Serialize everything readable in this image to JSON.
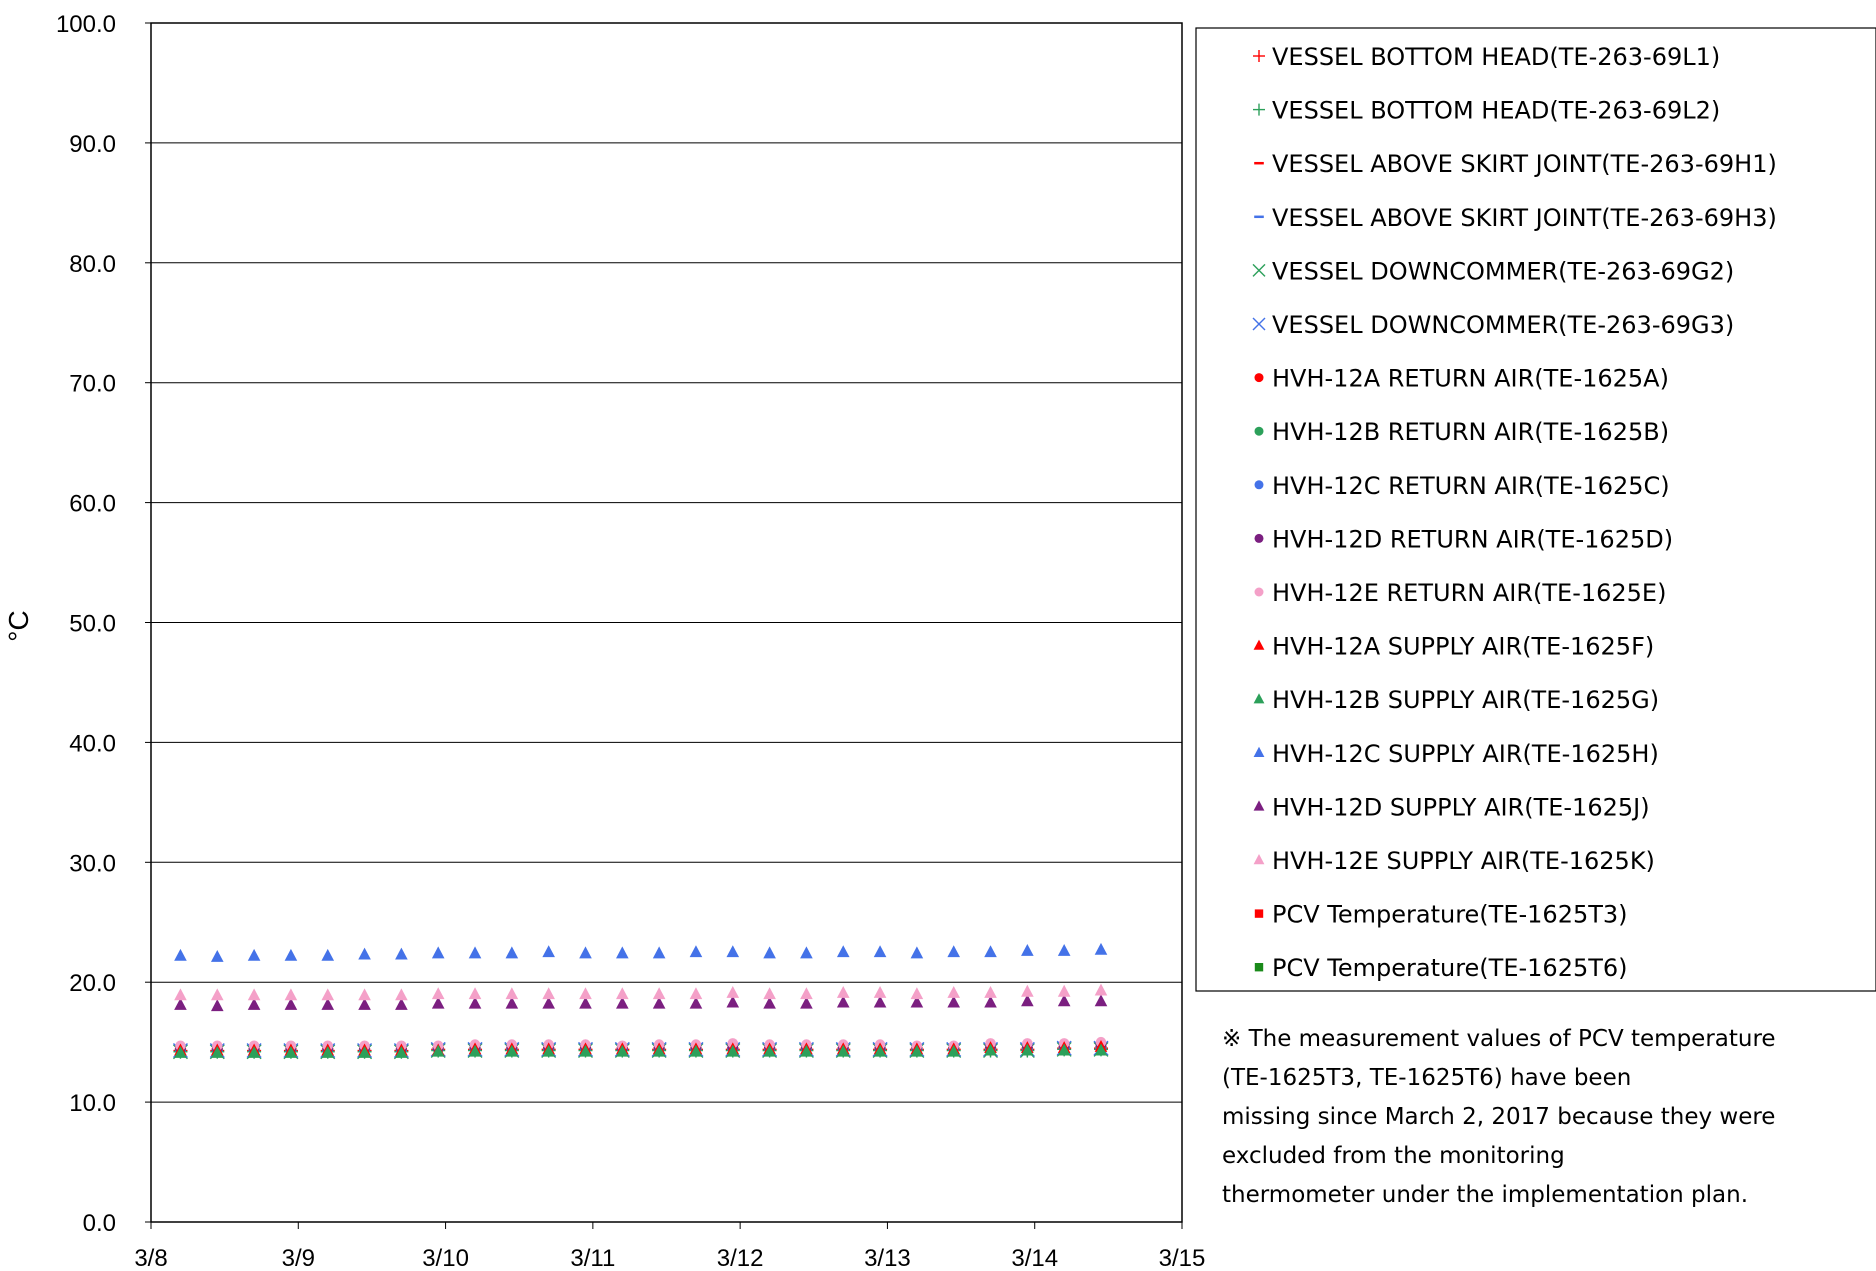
{
  "chart_data": {
    "type": "scatter",
    "title": "",
    "xlabel": "",
    "ylabel": "°C",
    "xlim": [
      0,
      7
    ],
    "xticks": [
      "3/8",
      "3/9",
      "3/10",
      "3/11",
      "3/12",
      "3/13",
      "3/14",
      "3/15"
    ],
    "ylim": [
      0,
      100
    ],
    "yticks": [
      "0.0",
      "10.0",
      "20.0",
      "30.0",
      "40.0",
      "50.0",
      "60.0",
      "70.0",
      "80.0",
      "90.0",
      "100.0"
    ],
    "grid": "horizontal",
    "legend_position": "right",
    "x": [
      0.2,
      0.45,
      0.7,
      0.95,
      1.2,
      1.45,
      1.7,
      1.95,
      2.2,
      2.45,
      2.7,
      2.95,
      3.2,
      3.45,
      3.7,
      3.95,
      4.2,
      4.45,
      4.7,
      4.95,
      5.2,
      5.45,
      5.7,
      5.95,
      6.2,
      6.45
    ],
    "series": [
      {
        "name": "VESSEL BOTTOM HEAD(TE-263-69L1)",
        "color": "#ff0000",
        "marker": "plus",
        "values": [
          14.3,
          14.3,
          14.3,
          14.3,
          14.3,
          14.3,
          14.3,
          14.4,
          14.4,
          14.4,
          14.4,
          14.4,
          14.4,
          14.4,
          14.4,
          14.4,
          14.4,
          14.4,
          14.4,
          14.4,
          14.4,
          14.4,
          14.4,
          14.4,
          14.5,
          14.5
        ]
      },
      {
        "name": "VESSEL BOTTOM HEAD(TE-263-69L2)",
        "color": "#2ca05a",
        "marker": "plus",
        "values": [
          14.2,
          14.2,
          14.2,
          14.2,
          14.2,
          14.2,
          14.2,
          14.3,
          14.3,
          14.3,
          14.3,
          14.3,
          14.3,
          14.3,
          14.3,
          14.3,
          14.3,
          14.3,
          14.3,
          14.3,
          14.3,
          14.3,
          14.3,
          14.3,
          14.4,
          14.4
        ]
      },
      {
        "name": "VESSEL ABOVE SKIRT JOINT(TE-263-69H1)",
        "color": "#ff0000",
        "marker": "dash",
        "values": [
          14.4,
          14.4,
          14.4,
          14.4,
          14.4,
          14.4,
          14.4,
          14.5,
          14.5,
          14.5,
          14.5,
          14.5,
          14.5,
          14.5,
          14.5,
          14.5,
          14.5,
          14.5,
          14.5,
          14.5,
          14.5,
          14.5,
          14.5,
          14.5,
          14.6,
          14.6
        ]
      },
      {
        "name": "VESSEL ABOVE SKIRT JOINT(TE-263-69H3)",
        "color": "#4472e8",
        "marker": "dash",
        "values": [
          14.3,
          14.3,
          14.3,
          14.3,
          14.3,
          14.3,
          14.3,
          14.4,
          14.4,
          14.4,
          14.4,
          14.4,
          14.4,
          14.4,
          14.4,
          14.4,
          14.4,
          14.4,
          14.4,
          14.4,
          14.4,
          14.4,
          14.4,
          14.4,
          14.5,
          14.5
        ]
      },
      {
        "name": "VESSEL DOWNCOMMER(TE-263-69G2)",
        "color": "#2ca05a",
        "marker": "x",
        "values": [
          14.2,
          14.2,
          14.2,
          14.2,
          14.2,
          14.2,
          14.2,
          14.3,
          14.3,
          14.3,
          14.3,
          14.3,
          14.3,
          14.3,
          14.3,
          14.3,
          14.3,
          14.3,
          14.3,
          14.3,
          14.3,
          14.3,
          14.3,
          14.3,
          14.4,
          14.4
        ]
      },
      {
        "name": "VESSEL DOWNCOMMER(TE-263-69G3)",
        "color": "#4472e8",
        "marker": "x",
        "values": [
          14.3,
          14.3,
          14.3,
          14.3,
          14.3,
          14.3,
          14.3,
          14.4,
          14.4,
          14.4,
          14.4,
          14.4,
          14.4,
          14.4,
          14.4,
          14.4,
          14.4,
          14.4,
          14.4,
          14.4,
          14.4,
          14.4,
          14.4,
          14.4,
          14.5,
          14.5
        ]
      },
      {
        "name": "HVH-12A RETURN AIR(TE-1625A)",
        "color": "#ff0000",
        "marker": "circle",
        "values": [
          14.6,
          14.6,
          14.6,
          14.6,
          14.6,
          14.6,
          14.6,
          14.6,
          14.7,
          14.7,
          14.7,
          14.7,
          14.6,
          14.7,
          14.7,
          14.8,
          14.7,
          14.7,
          14.7,
          14.7,
          14.6,
          14.6,
          14.8,
          14.8,
          14.8,
          14.9
        ]
      },
      {
        "name": "HVH-12B RETURN AIR(TE-1625B)",
        "color": "#2ca05a",
        "marker": "circle",
        "values": [
          14.4,
          14.4,
          14.4,
          14.4,
          14.4,
          14.4,
          14.4,
          14.4,
          14.5,
          14.5,
          14.5,
          14.5,
          14.5,
          14.5,
          14.5,
          14.5,
          14.5,
          14.5,
          14.5,
          14.5,
          14.5,
          14.5,
          14.6,
          14.6,
          14.6,
          14.7
        ]
      },
      {
        "name": "HVH-12C RETURN AIR(TE-1625C)",
        "color": "#4472e8",
        "marker": "circle",
        "values": [
          14.5,
          14.5,
          14.5,
          14.5,
          14.5,
          14.5,
          14.5,
          14.5,
          14.6,
          14.6,
          14.6,
          14.6,
          14.5,
          14.6,
          14.6,
          14.6,
          14.6,
          14.6,
          14.6,
          14.6,
          14.6,
          14.6,
          14.7,
          14.7,
          14.7,
          14.8
        ]
      },
      {
        "name": "HVH-12D RETURN AIR(TE-1625D)",
        "color": "#7b1f80",
        "marker": "circle",
        "values": [
          14.5,
          14.5,
          14.5,
          14.5,
          14.5,
          14.5,
          14.5,
          14.5,
          14.6,
          14.6,
          14.6,
          14.6,
          14.5,
          14.6,
          14.6,
          14.6,
          14.6,
          14.6,
          14.6,
          14.6,
          14.6,
          14.6,
          14.7,
          14.7,
          14.7,
          14.8
        ]
      },
      {
        "name": "HVH-12E RETURN AIR(TE-1625E)",
        "color": "#f4a0c8",
        "marker": "circle",
        "values": [
          14.7,
          14.7,
          14.7,
          14.7,
          14.7,
          14.7,
          14.7,
          14.7,
          14.8,
          14.8,
          14.8,
          14.8,
          14.7,
          14.8,
          14.8,
          14.9,
          14.8,
          14.8,
          14.8,
          14.8,
          14.7,
          14.7,
          14.9,
          14.9,
          14.9,
          15.0
        ]
      },
      {
        "name": "HVH-12A SUPPLY AIR(TE-1625F)",
        "color": "#ff0000",
        "marker": "triangle",
        "values": [
          14.3,
          14.3,
          14.3,
          14.3,
          14.3,
          14.3,
          14.3,
          14.3,
          14.4,
          14.4,
          14.4,
          14.4,
          14.4,
          14.4,
          14.4,
          14.4,
          14.4,
          14.4,
          14.4,
          14.4,
          14.4,
          14.4,
          14.5,
          14.5,
          14.5,
          14.6
        ]
      },
      {
        "name": "HVH-12B SUPPLY AIR(TE-1625G)",
        "color": "#2ca05a",
        "marker": "triangle",
        "values": [
          14.1,
          14.1,
          14.1,
          14.1,
          14.1,
          14.1,
          14.1,
          14.2,
          14.2,
          14.2,
          14.2,
          14.2,
          14.2,
          14.2,
          14.2,
          14.2,
          14.2,
          14.2,
          14.2,
          14.2,
          14.2,
          14.2,
          14.3,
          14.3,
          14.3,
          14.3
        ]
      },
      {
        "name": "HVH-12C SUPPLY AIR(TE-1625H)",
        "color": "#4472e8",
        "marker": "triangle",
        "values": [
          22.2,
          22.1,
          22.2,
          22.2,
          22.2,
          22.3,
          22.3,
          22.4,
          22.4,
          22.4,
          22.5,
          22.4,
          22.4,
          22.4,
          22.5,
          22.5,
          22.4,
          22.4,
          22.5,
          22.5,
          22.4,
          22.5,
          22.5,
          22.6,
          22.6,
          22.7
        ]
      },
      {
        "name": "HVH-12D SUPPLY AIR(TE-1625J)",
        "color": "#7b1f80",
        "marker": "triangle",
        "values": [
          18.1,
          18.0,
          18.1,
          18.1,
          18.1,
          18.1,
          18.1,
          18.2,
          18.2,
          18.2,
          18.2,
          18.2,
          18.2,
          18.2,
          18.2,
          18.3,
          18.2,
          18.2,
          18.3,
          18.3,
          18.3,
          18.3,
          18.3,
          18.4,
          18.4,
          18.4
        ]
      },
      {
        "name": "HVH-12E SUPPLY AIR(TE-1625K)",
        "color": "#f4a0c8",
        "marker": "triangle",
        "values": [
          18.9,
          18.9,
          18.9,
          18.9,
          18.9,
          18.9,
          18.9,
          19.0,
          19.0,
          19.0,
          19.0,
          19.0,
          19.0,
          19.0,
          19.0,
          19.1,
          19.0,
          19.0,
          19.1,
          19.1,
          19.0,
          19.1,
          19.1,
          19.2,
          19.2,
          19.3
        ]
      },
      {
        "name": "PCV Temperature(TE-1625T3)",
        "color": "#ff0000",
        "marker": "square",
        "values": []
      },
      {
        "name": "PCV Temperature(TE-1625T6)",
        "color": "#1a8a1a",
        "marker": "square",
        "values": []
      }
    ],
    "note_lines": [
      "※ The measurement values of PCV temperature",
      "(TE-1625T3, TE-1625T6) have been",
      "missing since March 2, 2017 because they were",
      "excluded from the monitoring",
      "thermometer under the implementation plan."
    ]
  }
}
